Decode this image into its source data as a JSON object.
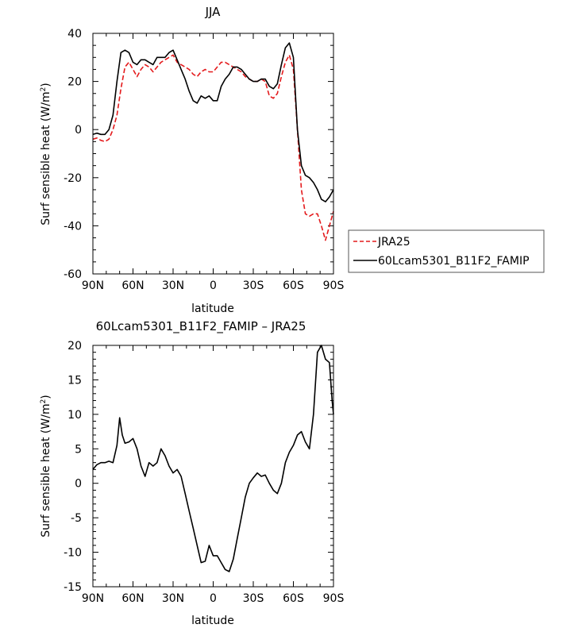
{
  "chart_data": [
    {
      "type": "line",
      "title": "JJA",
      "xlabel": "latitude",
      "ylabel": "Surf sensible heat (W/m²)",
      "xlim": [
        90,
        -90
      ],
      "ylim": [
        -60,
        40
      ],
      "x_tick_labels": [
        "90N",
        "60N",
        "30N",
        "0",
        "30S",
        "60S",
        "90S"
      ],
      "y_tick_labels": [
        "40",
        "20",
        "0",
        "-20",
        "-40",
        "-60"
      ],
      "legend": {
        "placement": "right",
        "entries": [
          "JRA25",
          "60Lcam5301_B11F2_FAMIP"
        ]
      },
      "series": [
        {
          "name": "JRA25",
          "color": "#e41a1c",
          "dash": "dashed",
          "points": [
            [
              90,
              -4
            ],
            [
              87,
              -3.5
            ],
            [
              84,
              -4.5
            ],
            [
              81,
              -5
            ],
            [
              78,
              -4
            ],
            [
              75,
              0
            ],
            [
              72,
              6
            ],
            [
              69,
              17
            ],
            [
              66,
              26
            ],
            [
              63,
              28
            ],
            [
              60,
              25
            ],
            [
              57,
              22
            ],
            [
              54,
              25
            ],
            [
              51,
              27
            ],
            [
              48,
              26
            ],
            [
              45,
              24
            ],
            [
              42,
              26
            ],
            [
              39,
              28
            ],
            [
              36,
              29
            ],
            [
              33,
              30
            ],
            [
              30,
              31
            ],
            [
              27,
              28
            ],
            [
              24,
              27
            ],
            [
              21,
              26
            ],
            [
              18,
              25
            ],
            [
              15,
              23
            ],
            [
              12,
              22
            ],
            [
              9,
              24
            ],
            [
              6,
              25
            ],
            [
              3,
              24
            ],
            [
              0,
              24
            ],
            [
              -3,
              26
            ],
            [
              -6,
              28
            ],
            [
              -9,
              28
            ],
            [
              -12,
              27
            ],
            [
              -15,
              26
            ],
            [
              -18,
              25
            ],
            [
              -21,
              24
            ],
            [
              -24,
              22
            ],
            [
              -27,
              21
            ],
            [
              -30,
              20
            ],
            [
              -33,
              20
            ],
            [
              -36,
              21
            ],
            [
              -39,
              20
            ],
            [
              -42,
              14
            ],
            [
              -45,
              13
            ],
            [
              -48,
              15
            ],
            [
              -51,
              22
            ],
            [
              -54,
              28
            ],
            [
              -57,
              31
            ],
            [
              -60,
              25
            ],
            [
              -63,
              0
            ],
            [
              -66,
              -25
            ],
            [
              -69,
              -35
            ],
            [
              -72,
              -36
            ],
            [
              -75,
              -35
            ],
            [
              -78,
              -35
            ],
            [
              -81,
              -40
            ],
            [
              -84,
              -46
            ],
            [
              -87,
              -40
            ],
            [
              -90,
              -34
            ]
          ]
        },
        {
          "name": "60Lcam5301_B11F2_FAMIP",
          "color": "#000000",
          "dash": "solid",
          "points": [
            [
              90,
              -2
            ],
            [
              87,
              -1.5
            ],
            [
              84,
              -2
            ],
            [
              81,
              -2
            ],
            [
              78,
              0
            ],
            [
              75,
              6
            ],
            [
              72,
              20
            ],
            [
              69,
              32
            ],
            [
              66,
              33
            ],
            [
              63,
              32
            ],
            [
              60,
              28
            ],
            [
              57,
              27
            ],
            [
              54,
              29
            ],
            [
              51,
              29
            ],
            [
              48,
              28
            ],
            [
              45,
              27
            ],
            [
              42,
              30
            ],
            [
              39,
              30
            ],
            [
              36,
              30
            ],
            [
              33,
              32
            ],
            [
              30,
              33
            ],
            [
              27,
              29
            ],
            [
              24,
              25
            ],
            [
              21,
              21
            ],
            [
              18,
              16
            ],
            [
              15,
              12
            ],
            [
              12,
              11
            ],
            [
              9,
              14
            ],
            [
              6,
              13
            ],
            [
              3,
              14
            ],
            [
              0,
              12
            ],
            [
              -3,
              12
            ],
            [
              -6,
              18
            ],
            [
              -9,
              21
            ],
            [
              -12,
              23
            ],
            [
              -15,
              26
            ],
            [
              -18,
              26
            ],
            [
              -21,
              25
            ],
            [
              -24,
              23
            ],
            [
              -27,
              21
            ],
            [
              -30,
              20
            ],
            [
              -33,
              20
            ],
            [
              -36,
              21
            ],
            [
              -39,
              21
            ],
            [
              -42,
              18
            ],
            [
              -45,
              17
            ],
            [
              -48,
              19
            ],
            [
              -51,
              27
            ],
            [
              -54,
              34
            ],
            [
              -57,
              36
            ],
            [
              -60,
              30
            ],
            [
              -63,
              0
            ],
            [
              -66,
              -15
            ],
            [
              -69,
              -19
            ],
            [
              -72,
              -20
            ],
            [
              -75,
              -22
            ],
            [
              -78,
              -25
            ],
            [
              -81,
              -29
            ],
            [
              -84,
              -30
            ],
            [
              -87,
              -28
            ],
            [
              -90,
              -25
            ]
          ]
        }
      ]
    },
    {
      "type": "line",
      "title": "60Lcam5301_B11F2_FAMIP – JRA25",
      "xlabel": "latitude",
      "ylabel": "Surf sensible heat (W/m²)",
      "xlim": [
        90,
        -90
      ],
      "ylim": [
        -15,
        20
      ],
      "x_tick_labels": [
        "90N",
        "60N",
        "30N",
        "0",
        "30S",
        "60S",
        "90S"
      ],
      "y_tick_labels": [
        "20",
        "15",
        "10",
        "5",
        "0",
        "-5",
        "-10",
        "-15"
      ],
      "series": [
        {
          "color": "#000000",
          "dash": "solid",
          "points": [
            [
              90,
              2
            ],
            [
              87,
              2.7
            ],
            [
              84,
              3
            ],
            [
              81,
              3
            ],
            [
              78,
              3.2
            ],
            [
              75,
              3
            ],
            [
              72,
              5.5
            ],
            [
              70,
              9.5
            ],
            [
              68,
              7
            ],
            [
              66,
              5.8
            ],
            [
              63,
              6
            ],
            [
              60,
              6.5
            ],
            [
              57,
              5
            ],
            [
              54,
              2.5
            ],
            [
              51,
              1
            ],
            [
              48,
              3
            ],
            [
              45,
              2.5
            ],
            [
              42,
              3
            ],
            [
              39,
              5
            ],
            [
              36,
              4
            ],
            [
              33,
              2.5
            ],
            [
              30,
              1.5
            ],
            [
              27,
              2
            ],
            [
              24,
              1
            ],
            [
              21,
              -1.5
            ],
            [
              18,
              -4
            ],
            [
              15,
              -6.5
            ],
            [
              12,
              -9
            ],
            [
              9,
              -11.5
            ],
            [
              6,
              -11.3
            ],
            [
              3,
              -9
            ],
            [
              0,
              -10.5
            ],
            [
              -3,
              -10.5
            ],
            [
              -6,
              -11.5
            ],
            [
              -9,
              -12.5
            ],
            [
              -12,
              -12.8
            ],
            [
              -15,
              -11
            ],
            [
              -18,
              -8
            ],
            [
              -21,
              -5
            ],
            [
              -24,
              -2
            ],
            [
              -27,
              0
            ],
            [
              -30,
              0.8
            ],
            [
              -33,
              1.5
            ],
            [
              -36,
              1
            ],
            [
              -39,
              1.2
            ],
            [
              -42,
              0
            ],
            [
              -45,
              -1
            ],
            [
              -48,
              -1.5
            ],
            [
              -51,
              0
            ],
            [
              -54,
              3
            ],
            [
              -57,
              4.5
            ],
            [
              -60,
              5.5
            ],
            [
              -63,
              7
            ],
            [
              -66,
              7.5
            ],
            [
              -69,
              6
            ],
            [
              -72,
              5
            ],
            [
              -75,
              10
            ],
            [
              -78,
              19
            ],
            [
              -81,
              20
            ],
            [
              -84,
              18
            ],
            [
              -87,
              17.5
            ],
            [
              -89,
              12
            ],
            [
              -90,
              10
            ]
          ]
        }
      ]
    }
  ]
}
